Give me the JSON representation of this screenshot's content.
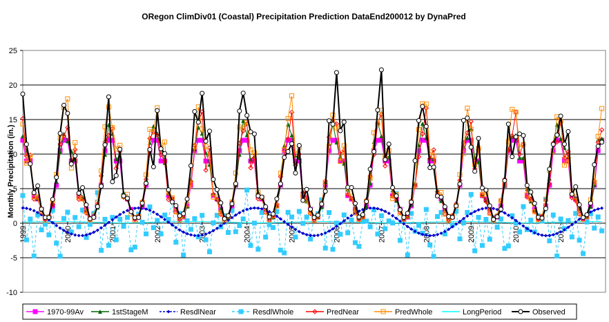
{
  "chart_data": {
    "type": "line",
    "title": "ORegon ClimDiv01 (Coastal) Precipitation Prediction DataEnd200012 by DynaPred",
    "ylabel": "Monthly Precipitation (in.)",
    "xlabel": "",
    "ylim": [
      -10,
      25
    ],
    "yticks": [
      -10,
      -5,
      0,
      5,
      10,
      15,
      20,
      25
    ],
    "x_start_year": 1999,
    "x_end_year": 2012,
    "xticks": [
      "1999",
      "2000",
      "2001",
      "2002",
      "2003",
      "2004",
      "2005",
      "2006",
      "2007",
      "2008",
      "2009",
      "2010",
      "2011"
    ],
    "grid": "horizontal",
    "legend_position": "bottom",
    "series": [
      {
        "name": "1970-99Av",
        "color": "#ff00ff",
        "style": "solid-square",
        "values": [
          12.0,
          9.0,
          9.0,
          4.0,
          3.5,
          2.0,
          0.7,
          0.9,
          2.5,
          5.5,
          10.5,
          12.0
        ]
      },
      {
        "name": "1stStageM",
        "color": "#006400",
        "style": "solid-triangle",
        "values": [
          12.5,
          10.0,
          9.0,
          4.5,
          3.5,
          2.0,
          0.8,
          0.9,
          2.5,
          6.0,
          11.0,
          13.5
        ]
      },
      {
        "name": "ResdlNear",
        "color": "#0000cd",
        "style": "dashed-diamond",
        "values": [
          2.5,
          -2.0,
          0.5,
          -0.8,
          -0.5,
          2.5,
          -1.5,
          -1.2,
          2.5,
          -0.5,
          -0.5,
          1.5,
          -1.2,
          0.5
        ]
      },
      {
        "name": "ResdlWhole",
        "color": "#33ccff",
        "style": "dashed-square",
        "values": [
          5.0,
          -4.0,
          1.0,
          -5.0,
          1.0,
          -2.0,
          0.5,
          -1.5,
          1.5,
          -4.0,
          -5.0,
          1.0,
          1.0,
          -1.5,
          2.0,
          -1.0,
          1.5,
          -2.0,
          0.5,
          1.0
        ]
      },
      {
        "name": "PredNear",
        "color": "#ff0000",
        "style": "solid-diamond",
        "values": [
          15.0,
          9.0,
          10.0,
          4.0,
          3.5,
          1.5,
          0.5,
          1.0,
          3.0,
          6.0,
          11.0,
          13.5
        ]
      },
      {
        "name": "PredWhole",
        "color": "#ff8c00",
        "style": "solid-square-open",
        "values": [
          16.0,
          9.5,
          10.0,
          4.0,
          4.0,
          1.5,
          0.5,
          1.0,
          3.0,
          6.5,
          12.0,
          15.5
        ]
      },
      {
        "name": "LongPeriod",
        "color": "#00ffff",
        "style": "solid",
        "values": [
          0.2,
          0.1,
          0.0,
          0.0,
          0.1,
          0.2,
          0.3,
          0.2,
          0.0
        ]
      },
      {
        "name": "Observed",
        "color": "#000000",
        "style": "solid-circle-open",
        "peaks": [
          {
            "x": 1999.0,
            "y": 18.7
          },
          {
            "x": 2000.0,
            "y": 15.9
          },
          {
            "x": 2001.0,
            "y": 6.0
          },
          {
            "x": 2002.0,
            "y": 16.3
          },
          {
            "x": 2002.95,
            "y": 18.8
          },
          {
            "x": 2003.95,
            "y": 15.6
          },
          {
            "x": 2004.95,
            "y": 11.5
          },
          {
            "x": 2005.95,
            "y": 21.8
          },
          {
            "x": 2006.95,
            "y": 22.2
          },
          {
            "x": 2007.95,
            "y": 14.0
          },
          {
            "x": 2008.95,
            "y": 11.0
          },
          {
            "x": 2009.95,
            "y": 12.5
          },
          {
            "x": 2010.95,
            "y": 15.5
          },
          {
            "x": 2011.95,
            "y": 13.0
          }
        ]
      }
    ]
  }
}
